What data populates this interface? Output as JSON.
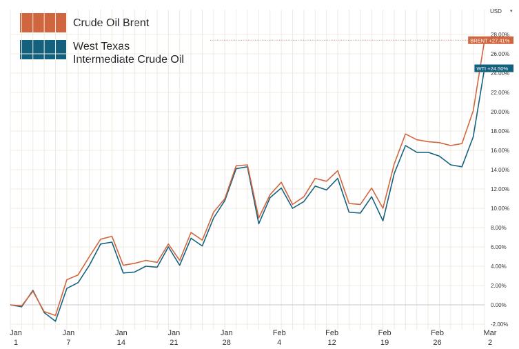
{
  "colors": {
    "brent": "#D0663F",
    "wti": "#14617E",
    "grid": "#F0E9DF",
    "zero_line": "#C8C8C8",
    "axis_text": "#333333"
  },
  "currency_selector": {
    "label": "USD",
    "icon": "chevron-down-icon"
  },
  "legend": [
    {
      "label": "Crude Oil Brent",
      "color": "#D0663F"
    },
    {
      "label": "West Texas\nIntermediate Crude Oil",
      "color": "#14617E"
    }
  ],
  "chart_data": {
    "type": "line",
    "ylim": [
      -2,
      29
    ],
    "y_ticks": [
      "-2.00%",
      "0.00%",
      "2.00%",
      "4.00%",
      "6.00%",
      "8.00%",
      "10.00%",
      "12.00%",
      "14.00%",
      "16.00%",
      "18.00%",
      "20.00%",
      "22.00%",
      "24.00%",
      "26.00%",
      "28.00%"
    ],
    "x_tick_labels": [
      {
        "month": "Jan",
        "day": "1"
      },
      {
        "month": "Jan",
        "day": "7"
      },
      {
        "month": "Jan",
        "day": "14"
      },
      {
        "month": "Jan",
        "day": "21"
      },
      {
        "month": "Jan",
        "day": "28"
      },
      {
        "month": "Feb",
        "day": "4"
      },
      {
        "month": "Feb",
        "day": "12"
      },
      {
        "month": "Feb",
        "day": "19"
      },
      {
        "month": "Feb",
        "day": "26"
      },
      {
        "month": "Mar",
        "day": "2"
      }
    ],
    "series": [
      {
        "name": "Crude Oil Brent",
        "short": "BRENT",
        "end_label": "+27.41%",
        "color": "#D0663F",
        "values": [
          0.0,
          -0.1,
          1.4,
          -0.7,
          -1.1,
          2.6,
          3.1,
          5.0,
          6.8,
          7.1,
          4.1,
          4.3,
          4.6,
          4.4,
          6.3,
          4.6,
          7.5,
          6.7,
          9.6,
          11.0,
          14.4,
          14.5,
          9.0,
          11.4,
          12.7,
          10.4,
          11.2,
          13.1,
          12.8,
          13.9,
          10.5,
          10.4,
          12.1,
          10.0,
          14.6,
          17.7,
          17.1,
          16.9,
          16.8,
          16.5,
          16.7,
          20.1,
          27.41
        ]
      },
      {
        "name": "West Texas Intermediate Crude Oil",
        "short": "WTI",
        "end_label": "+24.50%",
        "color": "#14617E",
        "values": [
          0.0,
          -0.2,
          1.5,
          -0.8,
          -1.7,
          1.7,
          2.3,
          4.1,
          6.3,
          6.5,
          3.3,
          3.4,
          4.0,
          3.9,
          6.0,
          4.1,
          6.9,
          6.1,
          9.0,
          10.8,
          14.1,
          14.3,
          8.4,
          11.1,
          12.1,
          10.0,
          10.7,
          12.3,
          11.9,
          13.1,
          9.6,
          9.5,
          11.2,
          8.7,
          13.6,
          16.5,
          15.8,
          15.8,
          15.4,
          14.5,
          14.3,
          17.4,
          24.5
        ]
      }
    ]
  }
}
